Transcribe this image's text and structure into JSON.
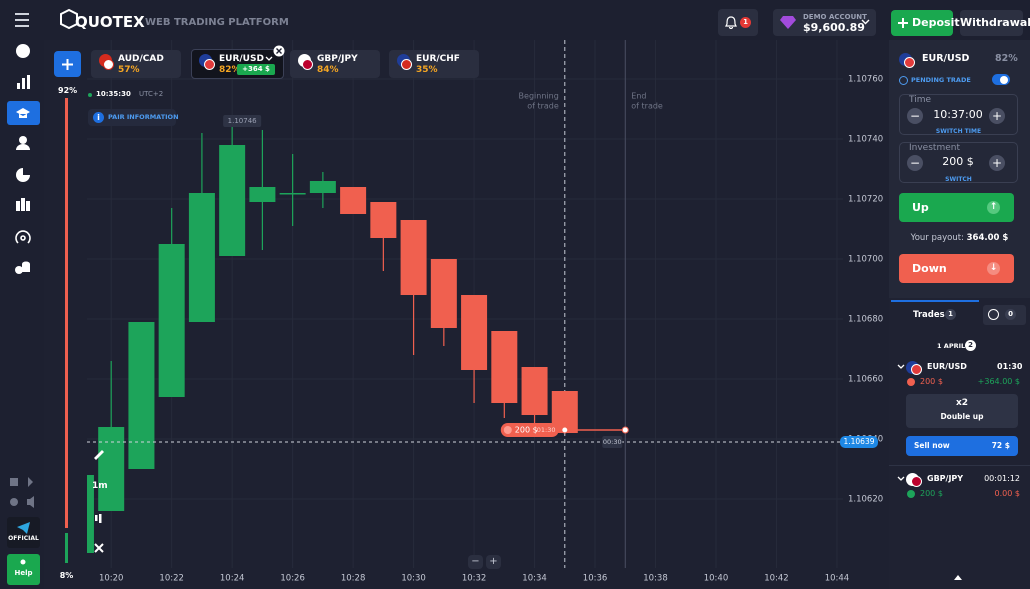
{
  "header": {
    "logo": "QUOTEX",
    "tagline": "WEB TRADING PLATFORM",
    "notifications": "1",
    "account_type": "DEMO ACCOUNT",
    "balance": "$9,600.89",
    "deposit": "Deposit",
    "withdrawal": "Withdrawal"
  },
  "tabs": [
    {
      "pair": "AUD/CAD",
      "payout": "57%"
    },
    {
      "pair": "EUR/USD",
      "payout": "82%",
      "profit": "+364 $"
    },
    {
      "pair": "GBP/JPY",
      "payout": "84%"
    },
    {
      "pair": "EUR/CHF",
      "payout": "35%"
    }
  ],
  "sidebar": {
    "official": "OFFICIAL",
    "help": "Help"
  },
  "sentiment": {
    "up": "92%",
    "down": "8%"
  },
  "chart_tools": {
    "timeframe": "1m",
    "zoom_out": "−",
    "zoom_in": "+"
  },
  "chart_data": {
    "type": "candlestick",
    "clock": "10:35:30",
    "timezone": "UTC+2",
    "pair_information": "PAIR INFORMATION",
    "x": [
      619,
      620,
      621,
      622,
      623,
      624,
      625,
      626,
      627,
      628,
      629,
      630,
      631,
      632,
      633,
      634,
      635
    ],
    "open": [
      1.10602,
      1.10616,
      1.1063,
      1.10654,
      1.10679,
      1.10701,
      1.10719,
      1.10722,
      1.10722,
      1.10724,
      1.10719,
      1.10713,
      1.107,
      1.10688,
      1.10676,
      1.10664,
      1.10656
    ],
    "high": [
      1.10628,
      1.10666,
      1.10679,
      1.10717,
      1.10742,
      1.10746,
      1.10743,
      1.10735,
      1.10729,
      1.10724,
      1.10719,
      1.10713,
      1.107,
      1.10688,
      1.10676,
      1.10664,
      1.10656
    ],
    "low": [
      1.106,
      1.10616,
      1.1063,
      1.10654,
      1.10679,
      1.10701,
      1.10703,
      1.10711,
      1.10717,
      1.10715,
      1.10696,
      1.10668,
      1.10671,
      1.10652,
      1.10647,
      1.10644,
      1.10642
    ],
    "close": [
      1.10628,
      1.10644,
      1.10679,
      1.10705,
      1.10722,
      1.10738,
      1.10724,
      1.10722,
      1.10726,
      1.10715,
      1.10707,
      1.10688,
      1.10677,
      1.10663,
      1.10652,
      1.10648,
      1.10642
    ],
    "up_color": "#1da45a",
    "down_color": "#f0604f",
    "xlim": [
      619.2,
      644.2
    ],
    "xticks": [
      {
        "value": 620,
        "label": "10:20"
      },
      {
        "value": 622,
        "label": "10:22"
      },
      {
        "value": 624,
        "label": "10:24"
      },
      {
        "value": 626,
        "label": "10:26"
      },
      {
        "value": 628,
        "label": "10:28"
      },
      {
        "value": 630,
        "label": "10:30"
      },
      {
        "value": 632,
        "label": "10:32"
      },
      {
        "value": 634,
        "label": "10:34"
      },
      {
        "value": 636,
        "label": "10:36"
      },
      {
        "value": 638,
        "label": "10:38"
      },
      {
        "value": 640,
        "label": "10:40"
      },
      {
        "value": 642,
        "label": "10:42"
      },
      {
        "value": 644,
        "label": "10:44"
      }
    ],
    "ylim": [
      1.10597,
      1.10773
    ],
    "yticks": [
      {
        "value": 1.1062,
        "label": "1.10620"
      },
      {
        "value": 1.1064,
        "label": "1.10640"
      },
      {
        "value": 1.1066,
        "label": "1.10660"
      },
      {
        "value": 1.1068,
        "label": "1.10680"
      },
      {
        "value": 1.107,
        "label": "1.10700"
      },
      {
        "value": 1.1072,
        "label": "1.10720"
      },
      {
        "value": 1.1074,
        "label": "1.10740"
      },
      {
        "value": 1.1076,
        "label": "1.10760"
      }
    ],
    "grid": true,
    "max_label": 1.10746,
    "current_price": 1.10639,
    "trade": {
      "amount": "200 $",
      "time_left": "01:30",
      "price": 1.10643,
      "open_time": 635,
      "close_time": 637,
      "countdown": "00:30"
    },
    "annotations": {
      "beginning": [
        "Beginning",
        "of trade"
      ],
      "end": [
        "End",
        "of trade"
      ]
    }
  },
  "panel": {
    "pair": "EUR/USD",
    "payout": "82%",
    "pending": "PENDING TRADE",
    "time_label": "Time",
    "time": "10:37:00",
    "switch_time": "SWITCH TIME",
    "investment_label": "Investment",
    "investment": "200 $",
    "switch": "SWITCH",
    "up": "Up",
    "payout_label": "Your payout:",
    "payout_value": "364.00 $",
    "down": "Down"
  },
  "trades": {
    "tab": "Trades",
    "open_count": "1",
    "pending_count": "0",
    "date": "1 APRIL",
    "date_count": "2",
    "items": [
      {
        "pair": "EUR/USD",
        "time": "01:30",
        "amount": "200 $",
        "profit": "+364.00 $",
        "double_multiplier": "x2",
        "double_label": "Double up",
        "sell_label": "Sell now",
        "sell_value": "72 $"
      },
      {
        "pair": "GBP/JPY",
        "time": "00:01:12",
        "amount": "200 $",
        "profit": "0.00 $"
      }
    ]
  }
}
